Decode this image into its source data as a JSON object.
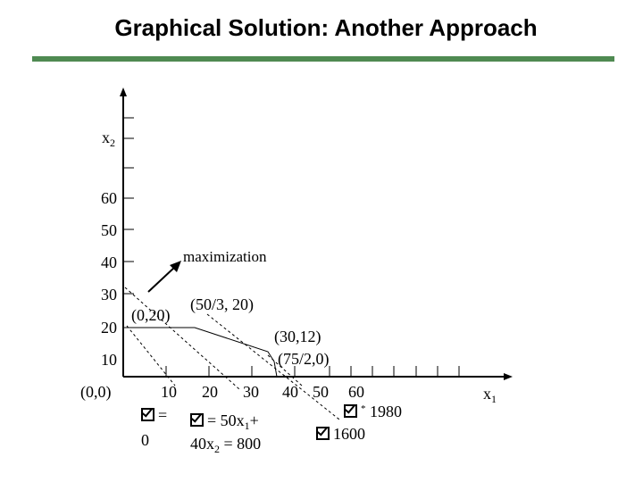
{
  "title": "Graphical Solution: Another Approach",
  "colors": {
    "title_bar": "#4f8a52",
    "ink": "#000000"
  },
  "axes": {
    "y_title": "x",
    "y_title_sub": "2",
    "x_title": "x",
    "x_title_sub": "1",
    "origin": "(0,0)",
    "y_ticks": [
      "60",
      "50",
      "40",
      "30",
      "20",
      "10"
    ],
    "x_ticks": [
      "10",
      "20",
      "30",
      "40",
      "50",
      "60"
    ]
  },
  "labels": {
    "maximization": "maximization",
    "p1": "(0,20)",
    "p2": "(50/3, 20)",
    "p3": "(30,12)",
    "p4": "(75/2,0)"
  },
  "equations": {
    "z0_sym": "=",
    "z0_val": "0",
    "z800_a": "= 50x",
    "z800_a_sub": "1",
    "z800_a_tail": "+",
    "z800_b": "40x",
    "z800_b_sub": "2",
    "z800_b_tail": " = 800",
    "zmax_sup": "*",
    "zmax_val": "1980",
    "z1600": "1600"
  },
  "icons": {
    "objective": "checkbox-icon"
  }
}
